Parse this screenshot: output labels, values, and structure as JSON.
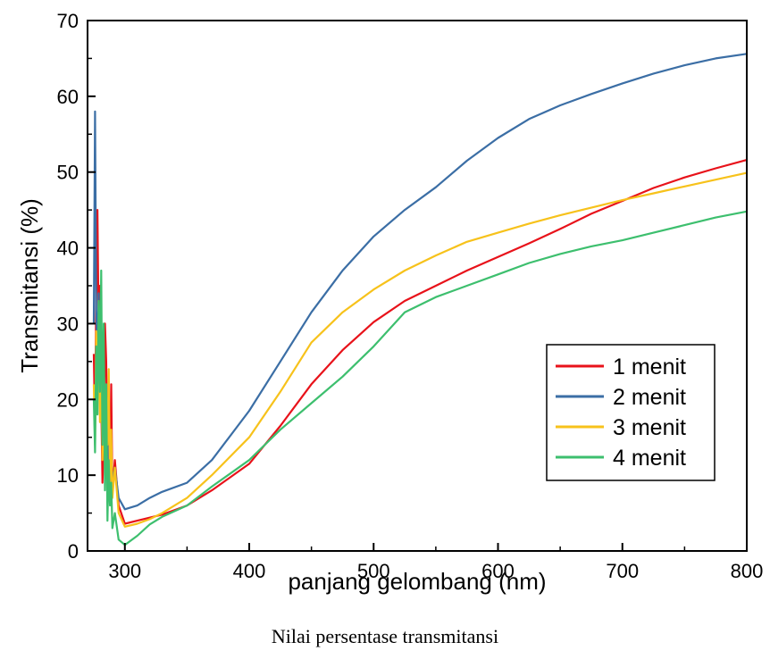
{
  "caption": "Nilai persentase transmitansi",
  "colors": {
    "s1": "#e8121a",
    "s2": "#3b6ea5",
    "s3": "#f7c21b",
    "s4": "#3dbf6e"
  },
  "chart_data": {
    "type": "line",
    "xlabel": "panjang gelombang (nm)",
    "ylabel": "Transmitansi (%)",
    "xlim": [
      270,
      800
    ],
    "ylim": [
      0,
      70
    ],
    "xticks": [
      300,
      400,
      500,
      600,
      700,
      800
    ],
    "yticks": [
      0,
      10,
      20,
      30,
      40,
      50,
      60,
      70
    ],
    "legend_position": "center-right",
    "grid": false,
    "series": [
      {
        "name": "1 menit",
        "x": [
          275,
          276,
          277,
          278,
          279,
          280,
          281,
          282,
          283,
          284,
          285,
          286,
          287,
          288,
          289,
          290,
          292,
          295,
          300,
          310,
          320,
          330,
          350,
          370,
          400,
          425,
          450,
          475,
          500,
          525,
          550,
          575,
          600,
          625,
          650,
          675,
          700,
          725,
          750,
          775,
          800
        ],
        "y": [
          26,
          16,
          34,
          45,
          28,
          35,
          20,
          9,
          14,
          30,
          25,
          12,
          18,
          10,
          22,
          8,
          12,
          6,
          3.6,
          4.0,
          4.4,
          4.8,
          6.0,
          8.0,
          11.5,
          16.5,
          22.0,
          26.5,
          30.2,
          33.0,
          35.0,
          37.0,
          38.8,
          40.6,
          42.5,
          44.5,
          46.2,
          47.9,
          49.3,
          50.5,
          51.6
        ]
      },
      {
        "name": "2 menit",
        "x": [
          275,
          276,
          277,
          278,
          279,
          280,
          281,
          282,
          283,
          284,
          285,
          286,
          287,
          288,
          289,
          290,
          292,
          295,
          300,
          310,
          320,
          330,
          350,
          370,
          400,
          425,
          450,
          475,
          500,
          525,
          550,
          575,
          600,
          625,
          650,
          675,
          700,
          725,
          750,
          775,
          800
        ],
        "y": [
          30,
          58,
          32,
          26,
          34,
          18,
          28,
          14,
          22,
          12,
          19,
          8,
          15,
          7,
          13,
          9,
          11,
          7,
          5.5,
          6.0,
          7.0,
          7.8,
          9.0,
          12.0,
          18.5,
          25.0,
          31.5,
          37.0,
          41.5,
          45.0,
          48.0,
          51.5,
          54.5,
          57.0,
          58.8,
          60.3,
          61.7,
          63.0,
          64.1,
          65.0,
          65.6
        ]
      },
      {
        "name": "3 menit",
        "x": [
          275,
          276,
          277,
          278,
          279,
          280,
          281,
          282,
          283,
          284,
          285,
          286,
          287,
          288,
          289,
          290,
          292,
          295,
          300,
          310,
          320,
          330,
          350,
          370,
          400,
          425,
          450,
          475,
          500,
          525,
          550,
          575,
          600,
          625,
          650,
          675,
          700,
          725,
          750,
          775,
          800
        ],
        "y": [
          22,
          14,
          29,
          20,
          30,
          17,
          25,
          12,
          22,
          10,
          20,
          14,
          24,
          9,
          16,
          7,
          11,
          5,
          3.2,
          3.6,
          4.2,
          5.0,
          7.0,
          10.0,
          15.0,
          21.0,
          27.5,
          31.5,
          34.5,
          37.0,
          39.0,
          40.8,
          42.0,
          43.2,
          44.3,
          45.3,
          46.3,
          47.2,
          48.1,
          49.0,
          49.9
        ]
      },
      {
        "name": "4 menit",
        "x": [
          275,
          276,
          277,
          278,
          279,
          280,
          281,
          282,
          283,
          284,
          285,
          286,
          287,
          288,
          289,
          290,
          292,
          295,
          300,
          310,
          320,
          330,
          350,
          370,
          400,
          425,
          450,
          475,
          500,
          525,
          550,
          575,
          600,
          625,
          650,
          675,
          700,
          725,
          750,
          775,
          800
        ],
        "y": [
          20,
          13,
          27,
          18,
          33,
          21,
          37,
          14,
          30,
          8,
          22,
          4,
          12,
          6,
          9,
          3,
          5,
          1.5,
          0.8,
          2.0,
          3.5,
          4.5,
          6.0,
          8.5,
          12.0,
          16.0,
          19.5,
          23.0,
          27.0,
          31.5,
          33.5,
          35.0,
          36.5,
          38.0,
          39.2,
          40.2,
          41.0,
          42.0,
          43.0,
          44.0,
          44.8
        ]
      }
    ]
  }
}
